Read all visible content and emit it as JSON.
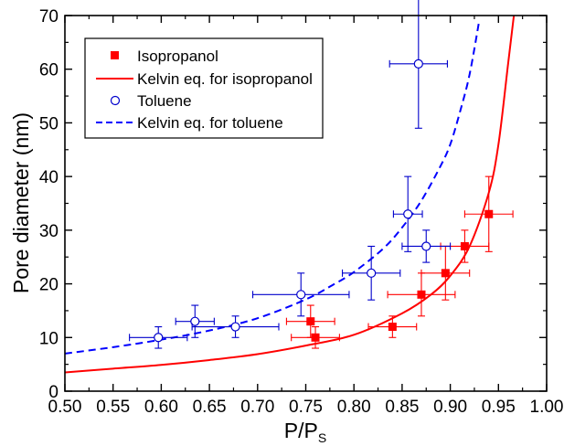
{
  "chart_data": {
    "type": "scatter",
    "xlabel_main": "P/P",
    "xlabel_sub": "S",
    "ylabel": "Pore diameter (nm)",
    "xlim": [
      0.5,
      1.0
    ],
    "ylim": [
      0,
      70
    ],
    "x_ticks": [
      0.5,
      0.55,
      0.6,
      0.65,
      0.7,
      0.75,
      0.8,
      0.85,
      0.9,
      0.95,
      1.0
    ],
    "x_tick_labels": [
      "0.50",
      "0.55",
      "0.60",
      "0.65",
      "0.70",
      "0.75",
      "0.80",
      "0.85",
      "0.90",
      "0.95",
      "1.00"
    ],
    "y_ticks": [
      0,
      10,
      20,
      30,
      40,
      50,
      60,
      70
    ],
    "y_tick_labels": [
      "0",
      "10",
      "20",
      "30",
      "40",
      "50",
      "60",
      "70"
    ],
    "grid": false,
    "legend_position": "top-left",
    "series": [
      {
        "name": "Isopropanol",
        "kind": "points",
        "marker": "filled-square",
        "color": "#ff0000",
        "points": [
          {
            "x": 0.755,
            "y": 13,
            "xerr": 0.025,
            "yerr": 3
          },
          {
            "x": 0.76,
            "y": 10,
            "xerr": 0.025,
            "yerr": 2
          },
          {
            "x": 0.84,
            "y": 12,
            "xerr": 0.025,
            "yerr": 2
          },
          {
            "x": 0.87,
            "y": 18,
            "xerr": 0.035,
            "yerr": 4
          },
          {
            "x": 0.895,
            "y": 22,
            "xerr": 0.025,
            "yerr": 5
          },
          {
            "x": 0.915,
            "y": 27,
            "xerr": 0.025,
            "yerr": 3
          },
          {
            "x": 0.94,
            "y": 33,
            "xerr": 0.025,
            "yerr": 7
          }
        ]
      },
      {
        "name": "Kelvin eq. for isopropanol",
        "kind": "curve",
        "style": "solid",
        "color": "#ff0000",
        "x": [
          0.5,
          0.55,
          0.6,
          0.65,
          0.7,
          0.75,
          0.8,
          0.85,
          0.88,
          0.9,
          0.92,
          0.94,
          0.95,
          0.96,
          0.966
        ],
        "y": [
          3.5,
          4.2,
          4.9,
          5.8,
          6.9,
          8.5,
          10.5,
          14.5,
          18.0,
          21.5,
          27.0,
          37.0,
          46.0,
          61.0,
          70.0
        ]
      },
      {
        "name": "Toluene",
        "kind": "points",
        "marker": "open-circle",
        "color": "#0000cc",
        "points": [
          {
            "x": 0.597,
            "y": 10,
            "xerr": 0.03,
            "yerr": 2
          },
          {
            "x": 0.635,
            "y": 13,
            "xerr": 0.02,
            "yerr": 3
          },
          {
            "x": 0.677,
            "y": 12,
            "xerr": 0.045,
            "yerr": 2
          },
          {
            "x": 0.745,
            "y": 18,
            "xerr": 0.05,
            "yerr": 4
          },
          {
            "x": 0.818,
            "y": 22,
            "xerr": 0.03,
            "yerr": 5
          },
          {
            "x": 0.856,
            "y": 33,
            "xerr": 0.015,
            "yerr": 7
          },
          {
            "x": 0.875,
            "y": 27,
            "xerr": 0.025,
            "yerr": 3
          },
          {
            "x": 0.867,
            "y": 61,
            "xerr": 0.03,
            "yerr": 12
          }
        ]
      },
      {
        "name": "Kelvin eq. for toluene",
        "kind": "curve",
        "style": "dashed",
        "color": "#0000ff",
        "x": [
          0.5,
          0.55,
          0.6,
          0.65,
          0.7,
          0.75,
          0.78,
          0.8,
          0.83,
          0.85,
          0.87,
          0.89,
          0.9,
          0.91,
          0.92,
          0.93
        ],
        "y": [
          7.0,
          8.2,
          9.6,
          11.3,
          13.6,
          17.1,
          20.0,
          22.2,
          26.5,
          30.5,
          35.5,
          42.0,
          46.0,
          52.0,
          59.0,
          69.0
        ]
      }
    ]
  }
}
